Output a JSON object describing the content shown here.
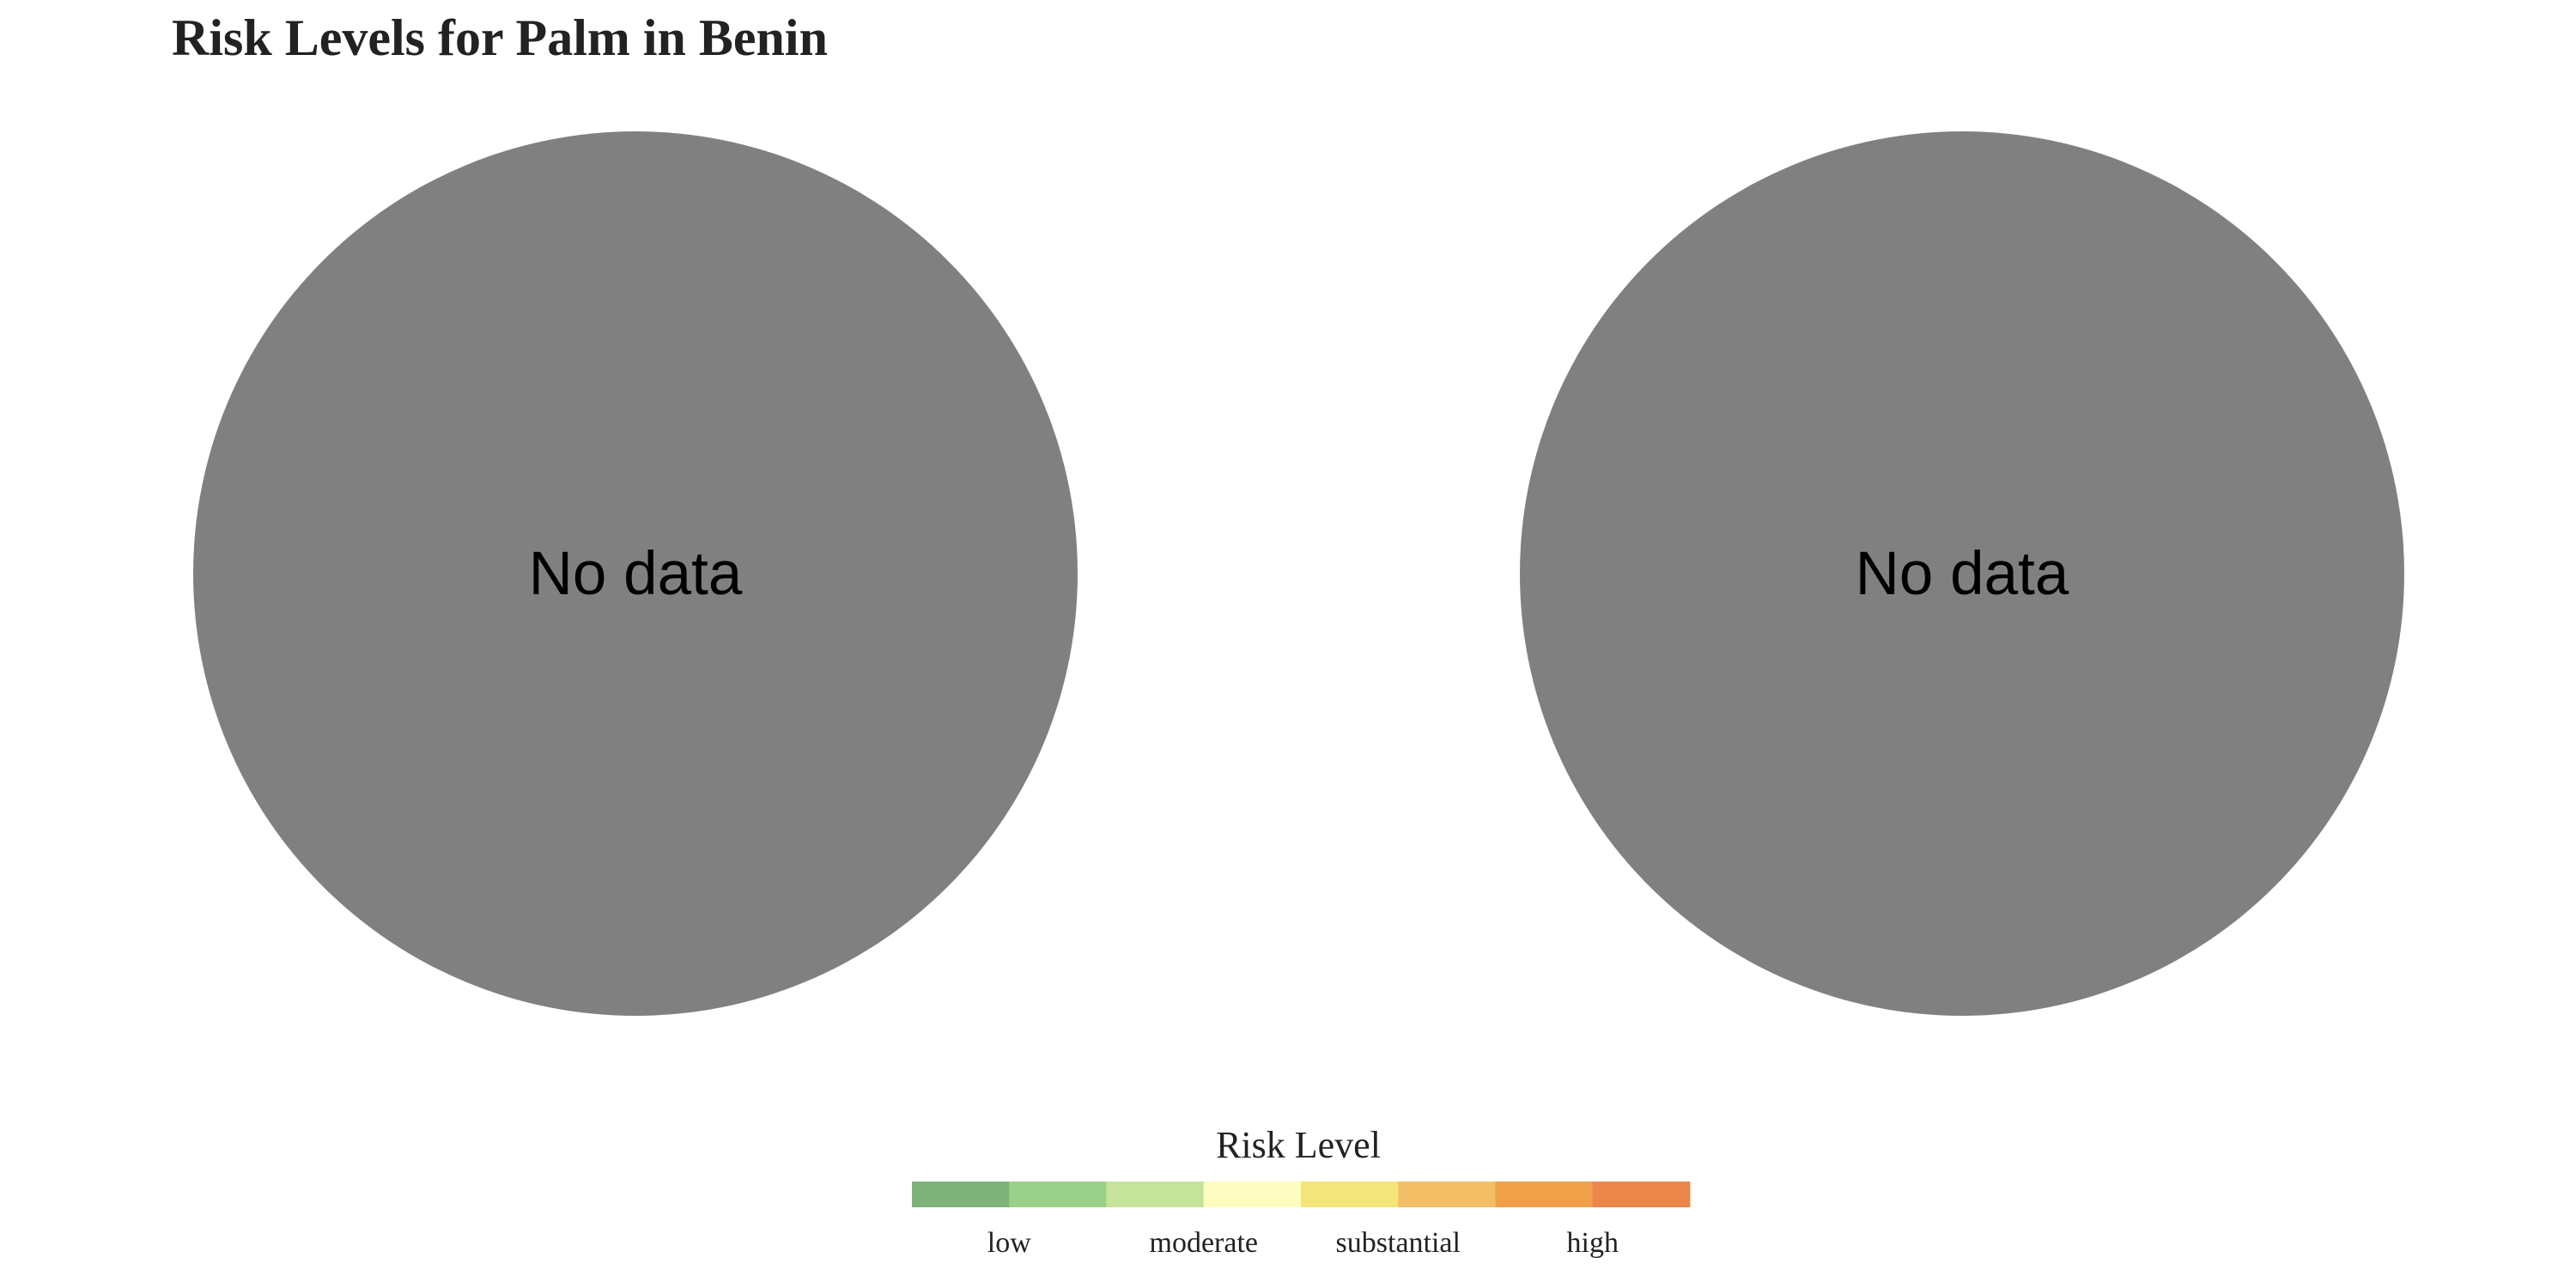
{
  "chart_data": {
    "type": "pie",
    "title": "Risk Levels for Palm in Benin",
    "panels": [
      {
        "values": [
          1
        ],
        "labels": [
          "No data"
        ],
        "color": "#808080"
      },
      {
        "values": [
          1
        ],
        "labels": [
          "No data"
        ],
        "color": "#808080"
      }
    ],
    "legend": {
      "title": "Risk Level",
      "placement": "bottom-center",
      "colors": [
        "#7fb27a",
        "#9ad18a",
        "#c6e39c",
        "#fefcc0",
        "#f3e57a",
        "#f3bf66",
        "#f1a04a",
        "#ec874a"
      ],
      "labels": [
        "low",
        "moderate",
        "substantial",
        "high"
      ]
    }
  }
}
